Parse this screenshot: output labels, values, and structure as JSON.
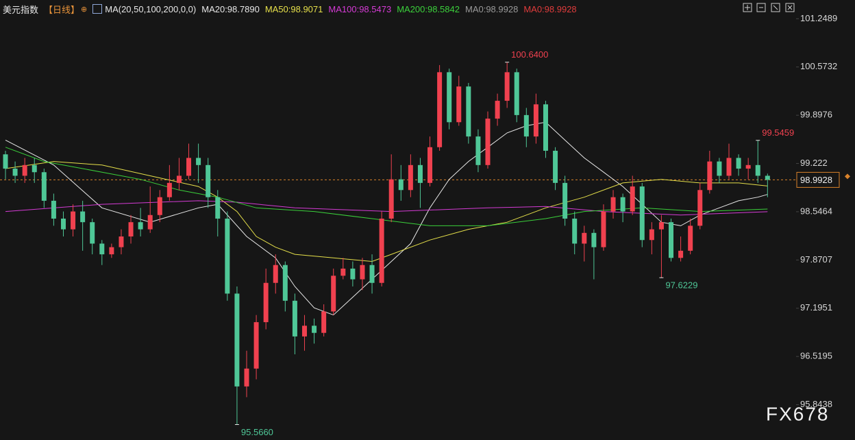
{
  "chart_data": {
    "type": "candlestick",
    "title": "美元指数",
    "period": "【日线】",
    "period_icon": "⊕",
    "indicator": "MA(20,50,100,200,0,0)",
    "watermark": "FX678",
    "up_color": "#f0414f",
    "down_color": "#4fc797",
    "ylim": [
      95.35,
      101.3
    ],
    "yticks": [
      101.2489,
      100.5732,
      99.8976,
      99.222,
      {
        "value": 98.5464,
        "label": "98.5464"
      },
      97.8707,
      97.1951,
      96.5195,
      95.8438
    ],
    "current_price": 98.9928,
    "current_color": "#d9822b",
    "open": [
      99.35,
      99.15,
      99.05,
      99.2,
      99.1,
      98.7,
      98.45,
      98.3,
      98.55,
      98.4,
      98.1,
      97.95,
      98.05,
      98.2,
      98.4,
      98.3,
      98.5,
      98.75,
      98.95,
      99.05,
      99.3,
      99.2,
      98.75,
      98.45,
      97.4,
      96.1,
      96.35,
      97.0,
      97.55,
      97.8,
      97.3,
      96.8,
      96.95,
      96.85,
      97.15,
      97.65,
      97.75,
      97.6,
      97.8,
      97.55,
      98.45,
      99.0,
      98.85,
      99.2,
      98.95,
      99.45,
      100.5,
      99.8,
      100.3,
      99.6,
      99.2,
      99.85,
      100.1,
      100.5,
      99.9,
      99.6,
      100.05,
      99.4,
      98.95,
      98.45,
      98.1,
      98.25,
      98.05,
      98.55,
      98.75,
      98.55,
      98.9,
      98.15,
      98.3,
      98.4,
      97.9,
      98.0,
      98.35,
      98.85,
      99.25,
      99.05,
      99.3,
      99.15,
      99.2,
      99.05
    ],
    "high": [
      99.4,
      99.25,
      99.3,
      99.3,
      99.15,
      98.8,
      98.55,
      98.65,
      98.7,
      98.45,
      98.15,
      98.1,
      98.3,
      98.5,
      98.6,
      98.9,
      98.85,
      99.2,
      99.3,
      99.5,
      99.5,
      99.3,
      98.85,
      98.55,
      97.5,
      96.6,
      97.1,
      97.75,
      97.95,
      97.85,
      97.4,
      97.1,
      97.05,
      97.25,
      97.75,
      97.9,
      97.85,
      97.9,
      97.95,
      98.55,
      99.35,
      99.2,
      99.35,
      99.3,
      99.6,
      100.6,
      100.55,
      100.45,
      100.35,
      99.7,
      99.95,
      100.2,
      100.64,
      100.55,
      100.0,
      100.2,
      100.1,
      99.45,
      99.05,
      98.55,
      98.35,
      98.3,
      98.65,
      98.85,
      98.8,
      99.05,
      98.95,
      98.4,
      98.5,
      98.45,
      98.2,
      98.45,
      98.95,
      99.4,
      99.3,
      99.5,
      99.35,
      99.3,
      99.5459,
      99.08
    ],
    "low": [
      99.0,
      98.95,
      98.95,
      98.95,
      98.6,
      98.35,
      98.2,
      98.2,
      98.0,
      97.95,
      97.8,
      97.9,
      97.95,
      98.1,
      98.2,
      98.25,
      98.4,
      98.7,
      98.85,
      99.0,
      98.95,
      98.6,
      98.2,
      97.3,
      95.566,
      95.95,
      96.2,
      96.9,
      97.4,
      97.15,
      96.55,
      96.6,
      96.7,
      96.8,
      97.1,
      97.6,
      97.5,
      97.45,
      97.4,
      97.5,
      98.4,
      98.7,
      98.75,
      98.6,
      98.9,
      99.4,
      99.7,
      99.75,
      99.5,
      99.1,
      99.15,
      99.75,
      100.0,
      99.8,
      99.45,
      99.5,
      99.3,
      98.85,
      98.35,
      97.95,
      97.85,
      97.6,
      98.0,
      98.45,
      98.4,
      98.5,
      98.05,
      97.95,
      97.6229,
      97.85,
      97.85,
      97.95,
      98.3,
      98.8,
      98.95,
      99.0,
      99.05,
      99.0,
      98.95,
      98.75
    ],
    "close": [
      99.15,
      99.05,
      99.2,
      99.1,
      98.7,
      98.45,
      98.3,
      98.55,
      98.4,
      98.1,
      97.95,
      98.05,
      98.2,
      98.4,
      98.3,
      98.5,
      98.75,
      98.95,
      99.05,
      99.3,
      99.2,
      98.75,
      98.45,
      97.4,
      96.1,
      96.35,
      97.0,
      97.55,
      97.8,
      97.3,
      96.8,
      96.95,
      96.85,
      97.15,
      97.65,
      97.75,
      97.6,
      97.8,
      97.55,
      98.45,
      99.0,
      98.85,
      99.2,
      98.95,
      99.45,
      100.5,
      99.8,
      100.3,
      99.6,
      99.2,
      99.85,
      100.1,
      100.5,
      99.9,
      99.6,
      100.05,
      99.4,
      98.95,
      98.45,
      98.1,
      98.25,
      98.05,
      98.55,
      98.75,
      98.55,
      98.9,
      98.15,
      98.3,
      98.4,
      97.9,
      98.0,
      98.35,
      98.85,
      99.25,
      99.05,
      99.3,
      99.15,
      99.2,
      99.05,
      98.9928
    ],
    "series": [
      {
        "name": "MA20:98.7890",
        "color": "#e8e8e8",
        "x": [
          0,
          5,
          10,
          15,
          20,
          22,
          25,
          28,
          30,
          32,
          34,
          36,
          38,
          40,
          42,
          44,
          46,
          48,
          50,
          52,
          54,
          56,
          58,
          60,
          62,
          64,
          66,
          68,
          70,
          72,
          74,
          76,
          78,
          79
        ],
        "values": [
          99.55,
          99.2,
          98.6,
          98.4,
          98.6,
          98.65,
          98.2,
          97.9,
          97.5,
          97.2,
          97.1,
          97.35,
          97.6,
          97.85,
          98.1,
          98.6,
          99.0,
          99.25,
          99.45,
          99.65,
          99.75,
          99.8,
          99.55,
          99.3,
          99.1,
          98.9,
          98.65,
          98.4,
          98.35,
          98.5,
          98.6,
          98.7,
          98.75,
          98.789
        ]
      },
      {
        "name": "MA50:98.9071",
        "color": "#e6e04a",
        "x": [
          0,
          5,
          10,
          15,
          20,
          22,
          24,
          26,
          28,
          30,
          34,
          38,
          40,
          44,
          48,
          52,
          56,
          60,
          64,
          68,
          72,
          76,
          79
        ],
        "values": [
          99.15,
          99.25,
          99.2,
          99.05,
          98.9,
          98.75,
          98.55,
          98.2,
          98.05,
          97.95,
          97.9,
          97.85,
          97.95,
          98.15,
          98.3,
          98.4,
          98.6,
          98.75,
          98.95,
          99.0,
          98.95,
          98.95,
          98.907
        ]
      },
      {
        "name": "MA100:98.5473",
        "color": "#d63bd6",
        "x": [
          0,
          10,
          20,
          24,
          30,
          40,
          50,
          56,
          62,
          70,
          79
        ],
        "values": [
          98.55,
          98.65,
          98.7,
          98.68,
          98.6,
          98.55,
          98.6,
          98.62,
          98.55,
          98.5,
          98.547
        ]
      },
      {
        "name": "MA200:98.5842",
        "color": "#3bd13b",
        "x": [
          0,
          4,
          8,
          14,
          18,
          22,
          26,
          32,
          38,
          44,
          50,
          56,
          60,
          66,
          72,
          79
        ],
        "values": [
          99.45,
          99.25,
          99.15,
          99.0,
          98.85,
          98.75,
          98.6,
          98.55,
          98.45,
          98.35,
          98.35,
          98.45,
          98.55,
          98.6,
          98.55,
          98.584
        ]
      }
    ],
    "legend_extra": [
      {
        "name": "MA0:98.9928",
        "color": "#9a9a9a"
      },
      {
        "name": "MA0:98.9928",
        "color": "#e03c3c"
      }
    ],
    "annotations": [
      {
        "index": 52,
        "value": 100.64,
        "label": "100.6400",
        "color": "#f0414f"
      },
      {
        "index": 78,
        "value": 99.5459,
        "label": "99.5459",
        "color": "#f0414f"
      },
      {
        "index": 68,
        "value": 97.6229,
        "label": "97.6229",
        "color": "#4fc797"
      },
      {
        "index": 24,
        "value": 95.566,
        "label": "95.5660",
        "color": "#4fc797"
      }
    ]
  }
}
